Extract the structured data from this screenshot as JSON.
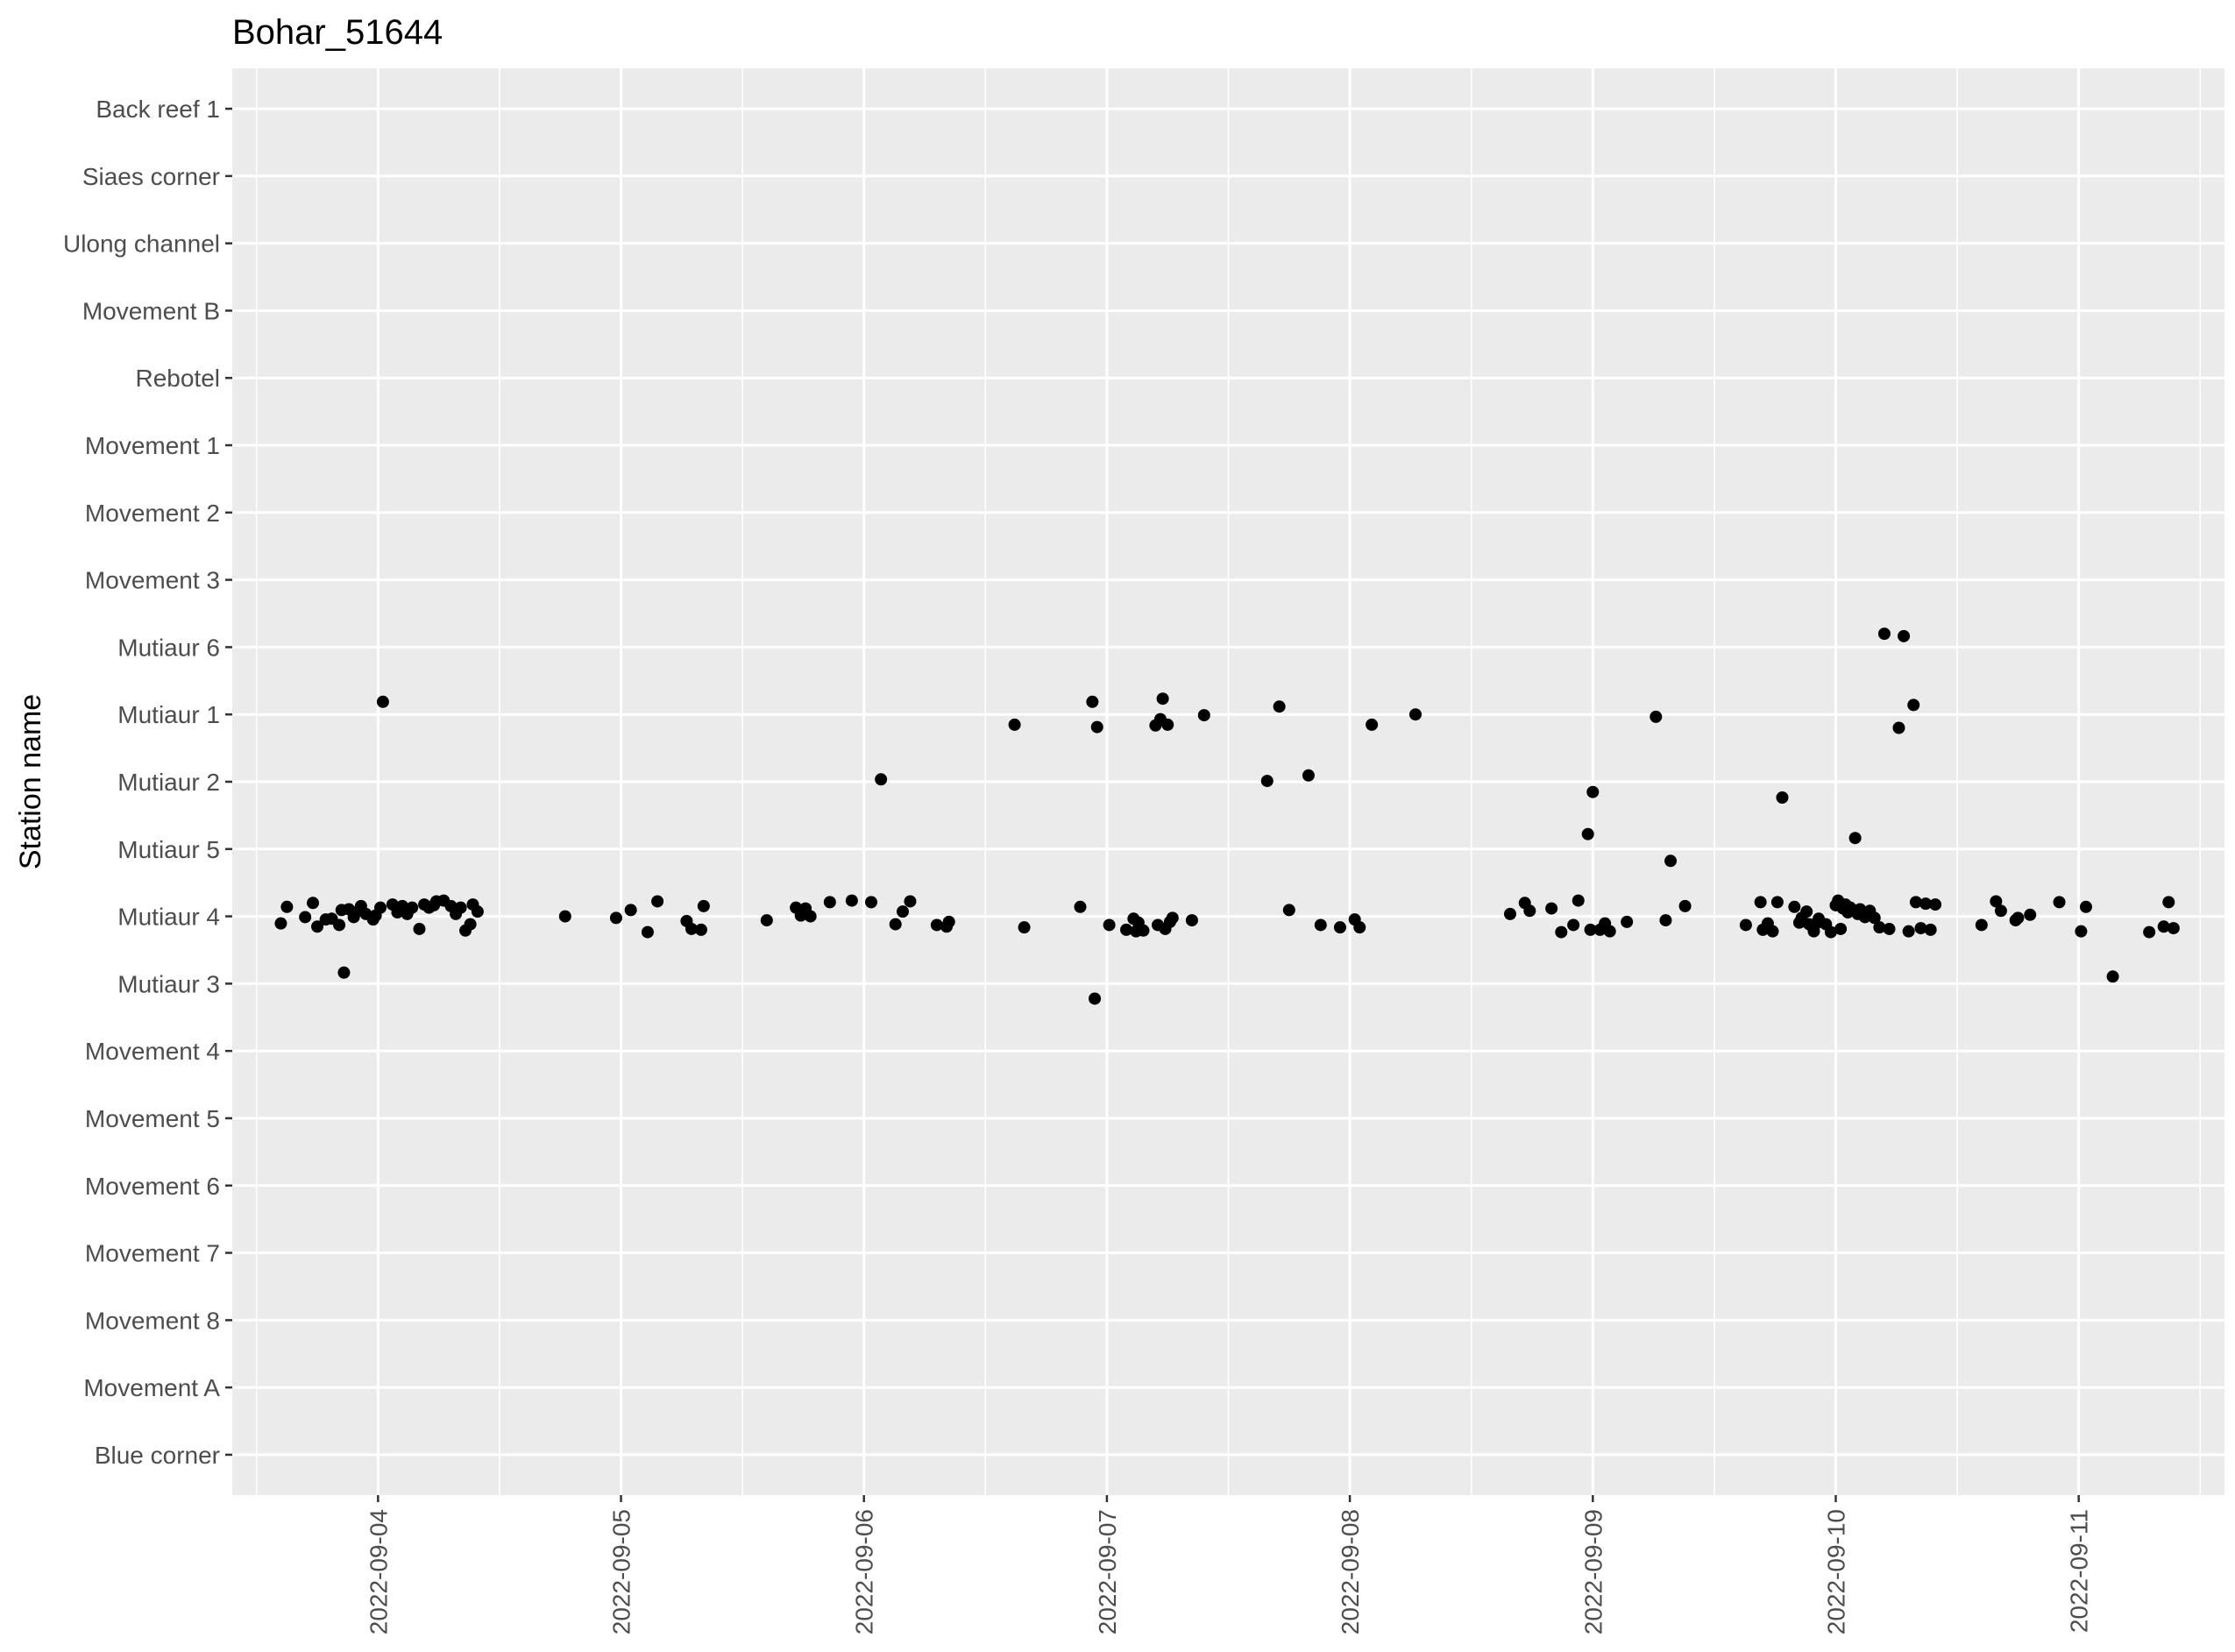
{
  "chart_data": {
    "type": "scatter",
    "title": "Bohar_51644",
    "xlabel": "",
    "ylabel": "Station name",
    "x_axis": {
      "type": "date",
      "ticks": [
        "2022-09-04",
        "2022-09-05",
        "2022-09-06",
        "2022-09-07",
        "2022-09-08",
        "2022-09-09",
        "2022-09-10",
        "2022-09-11"
      ],
      "range": [
        "2022-09-03 09:36",
        "2022-09-11 14:24"
      ]
    },
    "y_axis": {
      "type": "categorical",
      "categories_top_to_bottom": [
        "Back reef 1",
        "Siaes corner",
        "Ulong channel",
        "Movement B",
        "Rebotel",
        "Movement 1",
        "Movement 2",
        "Movement 3",
        "Mutiaur 6",
        "Mutiaur 1",
        "Mutiaur 2",
        "Mutiaur 5",
        "Mutiaur 4",
        "Mutiaur 3",
        "Movement 4",
        "Movement 5",
        "Movement 6",
        "Movement 7",
        "Movement 8",
        "Movement A",
        "Blue corner"
      ]
    },
    "grid": true,
    "point_color": "#000000",
    "panel_color": "#ebebeb",
    "grid_color": "#ffffff",
    "series": [
      {
        "points": [
          [
            "2022-09-03 14:24",
            "Mutiaur 4"
          ],
          [
            "2022-09-03 15:00",
            "Mutiaur 4"
          ],
          [
            "2022-09-03 16:48",
            "Mutiaur 4"
          ],
          [
            "2022-09-03 17:34",
            "Mutiaur 4"
          ],
          [
            "2022-09-03 18:00",
            "Mutiaur 4"
          ],
          [
            "2022-09-03 18:50",
            "Mutiaur 4"
          ],
          [
            "2022-09-03 19:26",
            "Mutiaur 4"
          ],
          [
            "2022-09-03 20:10",
            "Mutiaur 4"
          ],
          [
            "2022-09-03 20:24",
            "Mutiaur 4"
          ],
          [
            "2022-09-03 20:38",
            "Mutiaur 3"
          ],
          [
            "2022-09-03 21:07",
            "Mutiaur 4"
          ],
          [
            "2022-09-03 21:36",
            "Mutiaur 4"
          ],
          [
            "2022-09-03 22:05",
            "Mutiaur 4"
          ],
          [
            "2022-09-03 22:19",
            "Mutiaur 4"
          ],
          [
            "2022-09-03 22:48",
            "Mutiaur 4"
          ],
          [
            "2022-09-03 23:31",
            "Mutiaur 4"
          ],
          [
            "2022-09-03 23:46",
            "Mutiaur 4"
          ],
          [
            "2022-09-04 00:14",
            "Mutiaur 4"
          ],
          [
            "2022-09-04 00:29",
            "Mutiaur 1"
          ],
          [
            "2022-09-04 01:26",
            "Mutiaur 4"
          ],
          [
            "2022-09-04 01:55",
            "Mutiaur 4"
          ],
          [
            "2022-09-04 02:24",
            "Mutiaur 4"
          ],
          [
            "2022-09-04 02:53",
            "Mutiaur 4"
          ],
          [
            "2022-09-04 03:22",
            "Mutiaur 4"
          ],
          [
            "2022-09-04 04:05",
            "Mutiaur 4"
          ],
          [
            "2022-09-04 04:34",
            "Mutiaur 4"
          ],
          [
            "2022-09-04 05:02",
            "Mutiaur 4"
          ],
          [
            "2022-09-04 05:31",
            "Mutiaur 4"
          ],
          [
            "2022-09-04 05:46",
            "Mutiaur 4"
          ],
          [
            "2022-09-04 06:29",
            "Mutiaur 4"
          ],
          [
            "2022-09-04 07:12",
            "Mutiaur 4"
          ],
          [
            "2022-09-04 07:41",
            "Mutiaur 4"
          ],
          [
            "2022-09-04 08:10",
            "Mutiaur 4"
          ],
          [
            "2022-09-04 08:38",
            "Mutiaur 4"
          ],
          [
            "2022-09-04 09:07",
            "Mutiaur 4"
          ],
          [
            "2022-09-04 09:22",
            "Mutiaur 4"
          ],
          [
            "2022-09-04 09:50",
            "Mutiaur 4"
          ],
          [
            "2022-09-04 18:29",
            "Mutiaur 4"
          ],
          [
            "2022-09-04 23:31",
            "Mutiaur 4"
          ],
          [
            "2022-09-05 00:58",
            "Mutiaur 4"
          ],
          [
            "2022-09-05 02:38",
            "Mutiaur 4"
          ],
          [
            "2022-09-05 03:36",
            "Mutiaur 4"
          ],
          [
            "2022-09-05 06:29",
            "Mutiaur 4"
          ],
          [
            "2022-09-05 06:58",
            "Mutiaur 4"
          ],
          [
            "2022-09-05 07:55",
            "Mutiaur 4"
          ],
          [
            "2022-09-05 08:10",
            "Mutiaur 4"
          ],
          [
            "2022-09-05 14:24",
            "Mutiaur 4"
          ],
          [
            "2022-09-05 17:17",
            "Mutiaur 4"
          ],
          [
            "2022-09-05 17:46",
            "Mutiaur 4"
          ],
          [
            "2022-09-05 18:00",
            "Mutiaur 4"
          ],
          [
            "2022-09-05 18:14",
            "Mutiaur 4"
          ],
          [
            "2022-09-05 18:43",
            "Mutiaur 4"
          ],
          [
            "2022-09-05 20:38",
            "Mutiaur 4"
          ],
          [
            "2022-09-05 22:48",
            "Mutiaur 4"
          ],
          [
            "2022-09-06 00:43",
            "Mutiaur 4"
          ],
          [
            "2022-09-06 01:41",
            "Mutiaur 2"
          ],
          [
            "2022-09-06 03:07",
            "Mutiaur 4"
          ],
          [
            "2022-09-06 03:50",
            "Mutiaur 4"
          ],
          [
            "2022-09-06 04:34",
            "Mutiaur 4"
          ],
          [
            "2022-09-06 07:12",
            "Mutiaur 4"
          ],
          [
            "2022-09-06 08:10",
            "Mutiaur 4"
          ],
          [
            "2022-09-06 08:24",
            "Mutiaur 4"
          ],
          [
            "2022-09-06 14:53",
            "Mutiaur 1"
          ],
          [
            "2022-09-06 15:50",
            "Mutiaur 4"
          ],
          [
            "2022-09-06 21:22",
            "Mutiaur 4"
          ],
          [
            "2022-09-06 22:34",
            "Mutiaur 1"
          ],
          [
            "2022-09-06 22:48",
            "Mutiaur 3"
          ],
          [
            "2022-09-06 23:02",
            "Mutiaur 1"
          ],
          [
            "2022-09-07 00:14",
            "Mutiaur 4"
          ],
          [
            "2022-09-07 01:55",
            "Mutiaur 4"
          ],
          [
            "2022-09-07 02:38",
            "Mutiaur 4"
          ],
          [
            "2022-09-07 02:53",
            "Mutiaur 4"
          ],
          [
            "2022-09-07 03:07",
            "Mutiaur 4"
          ],
          [
            "2022-09-07 03:36",
            "Mutiaur 4"
          ],
          [
            "2022-09-07 04:48",
            "Mutiaur 1"
          ],
          [
            "2022-09-07 05:02",
            "Mutiaur 4"
          ],
          [
            "2022-09-07 05:17",
            "Mutiaur 1"
          ],
          [
            "2022-09-07 05:31",
            "Mutiaur 1"
          ],
          [
            "2022-09-07 05:46",
            "Mutiaur 4"
          ],
          [
            "2022-09-07 06:00",
            "Mutiaur 1"
          ],
          [
            "2022-09-07 06:14",
            "Mutiaur 4"
          ],
          [
            "2022-09-07 06:29",
            "Mutiaur 4"
          ],
          [
            "2022-09-07 08:24",
            "Mutiaur 4"
          ],
          [
            "2022-09-07 09:36",
            "Mutiaur 1"
          ],
          [
            "2022-09-07 15:50",
            "Mutiaur 2"
          ],
          [
            "2022-09-07 17:02",
            "Mutiaur 1"
          ],
          [
            "2022-09-07 18:00",
            "Mutiaur 4"
          ],
          [
            "2022-09-07 19:55",
            "Mutiaur 2"
          ],
          [
            "2022-09-07 21:07",
            "Mutiaur 4"
          ],
          [
            "2022-09-07 23:02",
            "Mutiaur 4"
          ],
          [
            "2022-09-08 00:29",
            "Mutiaur 4"
          ],
          [
            "2022-09-08 00:58",
            "Mutiaur 4"
          ],
          [
            "2022-09-08 02:10",
            "Mutiaur 1"
          ],
          [
            "2022-09-08 06:29",
            "Mutiaur 1"
          ],
          [
            "2022-09-08 15:50",
            "Mutiaur 4"
          ],
          [
            "2022-09-08 17:17",
            "Mutiaur 4"
          ],
          [
            "2022-09-08 17:46",
            "Mutiaur 4"
          ],
          [
            "2022-09-08 19:55",
            "Mutiaur 4"
          ],
          [
            "2022-09-08 20:53",
            "Mutiaur 4"
          ],
          [
            "2022-09-08 22:05",
            "Mutiaur 4"
          ],
          [
            "2022-09-08 22:34",
            "Mutiaur 4"
          ],
          [
            "2022-09-08 23:31",
            "Mutiaur 5"
          ],
          [
            "2022-09-08 23:46",
            "Mutiaur 4"
          ],
          [
            "2022-09-09 00:00",
            "Mutiaur 2"
          ],
          [
            "2022-09-09 00:43",
            "Mutiaur 4"
          ],
          [
            "2022-09-09 01:12",
            "Mutiaur 4"
          ],
          [
            "2022-09-09 01:41",
            "Mutiaur 4"
          ],
          [
            "2022-09-09 03:22",
            "Mutiaur 4"
          ],
          [
            "2022-09-09 06:14",
            "Mutiaur 1"
          ],
          [
            "2022-09-09 07:12",
            "Mutiaur 4"
          ],
          [
            "2022-09-09 07:41",
            "Mutiaur 5"
          ],
          [
            "2022-09-09 09:07",
            "Mutiaur 4"
          ],
          [
            "2022-09-09 15:07",
            "Mutiaur 4"
          ],
          [
            "2022-09-09 16:34",
            "Mutiaur 4"
          ],
          [
            "2022-09-09 16:48",
            "Mutiaur 4"
          ],
          [
            "2022-09-09 17:17",
            "Mutiaur 4"
          ],
          [
            "2022-09-09 17:46",
            "Mutiaur 4"
          ],
          [
            "2022-09-09 18:14",
            "Mutiaur 4"
          ],
          [
            "2022-09-09 18:43",
            "Mutiaur 2"
          ],
          [
            "2022-09-09 19:55",
            "Mutiaur 4"
          ],
          [
            "2022-09-09 20:24",
            "Mutiaur 4"
          ],
          [
            "2022-09-09 20:38",
            "Mutiaur 4"
          ],
          [
            "2022-09-09 21:07",
            "Mutiaur 4"
          ],
          [
            "2022-09-09 21:22",
            "Mutiaur 4"
          ],
          [
            "2022-09-09 21:50",
            "Mutiaur 4"
          ],
          [
            "2022-09-09 22:05",
            "Mutiaur 4"
          ],
          [
            "2022-09-09 22:19",
            "Mutiaur 4"
          ],
          [
            "2022-09-09 23:02",
            "Mutiaur 4"
          ],
          [
            "2022-09-09 23:31",
            "Mutiaur 4"
          ],
          [
            "2022-09-10 00:00",
            "Mutiaur 4"
          ],
          [
            "2022-09-10 00:14",
            "Mutiaur 4"
          ],
          [
            "2022-09-10 00:29",
            "Mutiaur 4"
          ],
          [
            "2022-09-10 00:43",
            "Mutiaur 4"
          ],
          [
            "2022-09-10 00:58",
            "Mutiaur 4"
          ],
          [
            "2022-09-10 01:12",
            "Mutiaur 4"
          ],
          [
            "2022-09-10 01:26",
            "Mutiaur 4"
          ],
          [
            "2022-09-10 01:41",
            "Mutiaur 4"
          ],
          [
            "2022-09-10 01:55",
            "Mutiaur 5"
          ],
          [
            "2022-09-10 02:10",
            "Mutiaur 4"
          ],
          [
            "2022-09-10 02:24",
            "Mutiaur 4"
          ],
          [
            "2022-09-10 02:53",
            "Mutiaur 4"
          ],
          [
            "2022-09-10 03:22",
            "Mutiaur 4"
          ],
          [
            "2022-09-10 03:50",
            "Mutiaur 4"
          ],
          [
            "2022-09-10 04:19",
            "Mutiaur 4"
          ],
          [
            "2022-09-10 04:48",
            "Mutiaur 6"
          ],
          [
            "2022-09-10 05:17",
            "Mutiaur 4"
          ],
          [
            "2022-09-10 06:14",
            "Mutiaur 1"
          ],
          [
            "2022-09-10 06:43",
            "Mutiaur 6"
          ],
          [
            "2022-09-10 07:12",
            "Mutiaur 4"
          ],
          [
            "2022-09-10 07:41",
            "Mutiaur 1"
          ],
          [
            "2022-09-10 07:55",
            "Mutiaur 4"
          ],
          [
            "2022-09-10 08:24",
            "Mutiaur 4"
          ],
          [
            "2022-09-10 08:53",
            "Mutiaur 4"
          ],
          [
            "2022-09-10 09:22",
            "Mutiaur 4"
          ],
          [
            "2022-09-10 09:50",
            "Mutiaur 4"
          ],
          [
            "2022-09-10 14:24",
            "Mutiaur 4"
          ],
          [
            "2022-09-10 15:50",
            "Mutiaur 4"
          ],
          [
            "2022-09-10 16:19",
            "Mutiaur 4"
          ],
          [
            "2022-09-10 17:46",
            "Mutiaur 4"
          ],
          [
            "2022-09-10 18:00",
            "Mutiaur 4"
          ],
          [
            "2022-09-10 19:12",
            "Mutiaur 4"
          ],
          [
            "2022-09-10 22:05",
            "Mutiaur 4"
          ],
          [
            "2022-09-11 00:14",
            "Mutiaur 4"
          ],
          [
            "2022-09-11 00:43",
            "Mutiaur 4"
          ],
          [
            "2022-09-11 03:22",
            "Mutiaur 3"
          ],
          [
            "2022-09-11 06:58",
            "Mutiaur 4"
          ],
          [
            "2022-09-11 08:24",
            "Mutiaur 4"
          ],
          [
            "2022-09-11 08:53",
            "Mutiaur 4"
          ],
          [
            "2022-09-11 09:22",
            "Mutiaur 4"
          ]
        ]
      }
    ]
  }
}
